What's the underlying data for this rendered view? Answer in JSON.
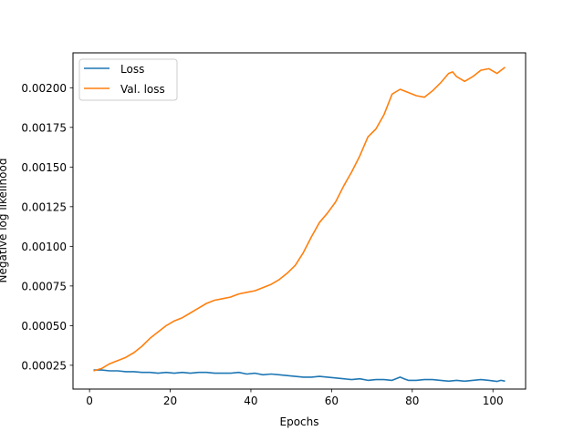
{
  "chart_data": {
    "type": "line",
    "title": "",
    "xlabel": "Epochs",
    "ylabel": "Negative log likelihood",
    "xlim": [
      -4.1,
      108.1
    ],
    "ylim": [
      0.0001,
      0.00222
    ],
    "xticks": [
      0,
      20,
      40,
      60,
      80,
      100
    ],
    "xtick_labels": [
      "0",
      "20",
      "40",
      "60",
      "80",
      "100"
    ],
    "yticks": [
      0.00025,
      0.0005,
      0.00075,
      0.001,
      0.00125,
      0.0015,
      0.00175,
      0.002
    ],
    "ytick_labels": [
      "0.00025",
      "0.00050",
      "0.00075",
      "0.00100",
      "0.00125",
      "0.00150",
      "0.00175",
      "0.00200"
    ],
    "grid": false,
    "legend_position": "top-left",
    "series": [
      {
        "name": "Loss",
        "color": "#1f77b4",
        "x": [
          1,
          3,
          5,
          7,
          9,
          11,
          13,
          15,
          17,
          19,
          21,
          23,
          25,
          27,
          29,
          31,
          33,
          35,
          37,
          39,
          41,
          43,
          45,
          47,
          49,
          51,
          53,
          55,
          57,
          59,
          61,
          63,
          65,
          67,
          69,
          71,
          73,
          75,
          77,
          78,
          79,
          81,
          83,
          85,
          87,
          89,
          91,
          93,
          95,
          97,
          99,
          101,
          102,
          103
        ],
        "y": [
          0.00022,
          0.00022,
          0.000215,
          0.000215,
          0.00021,
          0.00021,
          0.000205,
          0.000205,
          0.0002,
          0.000205,
          0.0002,
          0.000205,
          0.0002,
          0.000205,
          0.000205,
          0.0002,
          0.0002,
          0.0002,
          0.000205,
          0.000195,
          0.0002,
          0.00019,
          0.000195,
          0.00019,
          0.000185,
          0.00018,
          0.000175,
          0.000175,
          0.00018,
          0.000175,
          0.00017,
          0.000165,
          0.00016,
          0.000165,
          0.000155,
          0.00016,
          0.00016,
          0.000155,
          0.000175,
          0.000165,
          0.000155,
          0.000155,
          0.00016,
          0.00016,
          0.000155,
          0.00015,
          0.000155,
          0.00015,
          0.000155,
          0.00016,
          0.000155,
          0.000148,
          0.000155,
          0.00015
        ]
      },
      {
        "name": "Val. loss",
        "color": "#ff7f0e",
        "x": [
          1,
          3,
          5,
          7,
          9,
          11,
          13,
          15,
          17,
          19,
          21,
          23,
          25,
          27,
          29,
          31,
          33,
          35,
          37,
          39,
          41,
          43,
          45,
          47,
          49,
          51,
          53,
          55,
          57,
          59,
          61,
          63,
          65,
          67,
          69,
          71,
          73,
          75,
          77,
          79,
          81,
          83,
          85,
          87,
          89,
          90,
          91,
          93,
          95,
          97,
          99,
          101,
          103
        ],
        "y": [
          0.000215,
          0.00023,
          0.00026,
          0.00028,
          0.0003,
          0.00033,
          0.00037,
          0.00042,
          0.00046,
          0.0005,
          0.00053,
          0.00055,
          0.00058,
          0.00061,
          0.00064,
          0.00066,
          0.00067,
          0.00068,
          0.0007,
          0.00071,
          0.00072,
          0.00074,
          0.00076,
          0.00079,
          0.00083,
          0.00088,
          0.00096,
          0.00106,
          0.00115,
          0.00121,
          0.00128,
          0.00138,
          0.00147,
          0.00157,
          0.00169,
          0.00174,
          0.00183,
          0.00196,
          0.00199,
          0.00197,
          0.00195,
          0.00194,
          0.00198,
          0.00203,
          0.00209,
          0.0021,
          0.00207,
          0.00204,
          0.00207,
          0.00211,
          0.00212,
          0.00209,
          0.00213
        ]
      }
    ]
  }
}
